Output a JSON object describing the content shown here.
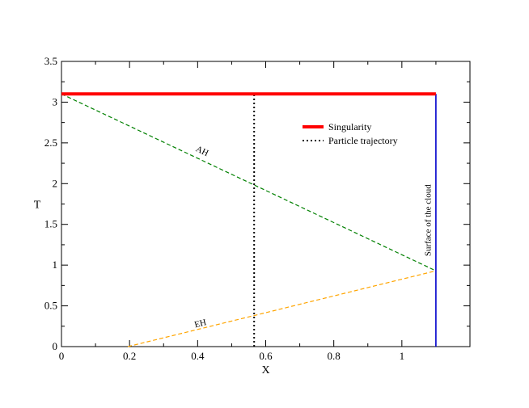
{
  "chart_data": {
    "type": "line",
    "title": "",
    "xlabel": "X",
    "ylabel": "T",
    "xlim": [
      0,
      1.2
    ],
    "ylim": [
      0,
      3.5
    ],
    "x_ticks": [
      0,
      0.2,
      0.4,
      0.6,
      0.8,
      1.0
    ],
    "x_tick_labels": [
      "0",
      "0.2",
      "0.4",
      "0.6",
      "0.8",
      "1"
    ],
    "y_ticks": [
      0,
      0.5,
      1.0,
      1.5,
      2.0,
      2.5,
      3.0,
      3.5
    ],
    "y_tick_labels": [
      "0",
      "0.5",
      "1",
      "1.5",
      "2",
      "2.5",
      "3",
      "3.5"
    ],
    "grid": false,
    "legend_position": "upper-right",
    "series": [
      {
        "name": "Singularity",
        "x": [
          0,
          1.1
        ],
        "y": [
          3.1,
          3.1
        ],
        "color": "#ff0000",
        "style": "solid",
        "in_legend": true
      },
      {
        "name": "Particle trajectory",
        "x": [
          0.566,
          0.566
        ],
        "y": [
          0,
          3.1
        ],
        "color": "#000000",
        "style": "dotted",
        "in_legend": true
      },
      {
        "name": "",
        "label": "AH",
        "x": [
          0,
          1.1
        ],
        "y": [
          3.1,
          0.93
        ],
        "color": "#008000",
        "style": "dashed",
        "in_legend": false
      },
      {
        "name": "",
        "label": "EH",
        "x": [
          0.195,
          1.1
        ],
        "y": [
          0,
          0.93
        ],
        "color": "#ffa500",
        "style": "dashed",
        "in_legend": false
      },
      {
        "name": "",
        "label": "Surface of the cloud",
        "x": [
          1.1,
          1.1
        ],
        "y": [
          0,
          3.1
        ],
        "color": "#0000cc",
        "style": "solid",
        "in_legend": false
      }
    ],
    "annotations": [
      {
        "text": "AH",
        "x": 0.41,
        "y": 2.37
      },
      {
        "text": "EH",
        "x": 0.41,
        "y": 0.25
      },
      {
        "text": "Surface of the cloud",
        "x": 1.085,
        "y": 1.55
      }
    ]
  }
}
